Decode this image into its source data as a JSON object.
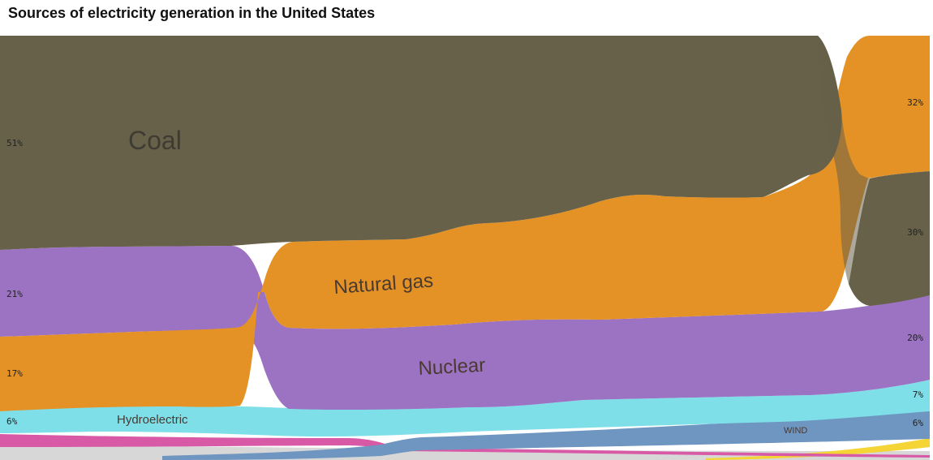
{
  "title": "Sources of electricity generation in the United States",
  "chart_data": {
    "type": "area",
    "title": "Sources of electricity generation in the United States",
    "xlabel": "",
    "ylabel": "",
    "ylim": [
      0,
      100
    ],
    "note": "Bump-style stacked streamgraph; labels are shares of total generation at the start and end of the period",
    "series": [
      {
        "name": "Coal",
        "color": "#676149",
        "start_label": "51%",
        "end_label": "30%",
        "start_value": 51,
        "end_value": 30
      },
      {
        "name": "Natural gas",
        "color": "#e49225",
        "start_label": "17%",
        "end_label": "32%",
        "start_value": 17,
        "end_value": 32
      },
      {
        "name": "Nuclear",
        "color": "#9c72c3",
        "start_label": "21%",
        "end_label": "20%",
        "start_value": 21,
        "end_value": 20
      },
      {
        "name": "Hydroelectric",
        "color": "#7fdfe8",
        "start_label": "6%",
        "end_label": "7%",
        "start_value": 6,
        "end_value": 7
      },
      {
        "name": "WIND",
        "color": "#6e96c0",
        "start_label": "",
        "end_label": "6%",
        "start_value": 0.2,
        "end_value": 6
      },
      {
        "name": "",
        "color": "#d85aa6",
        "start_label": "",
        "end_label": "",
        "start_value": 2.5,
        "end_value": 0.5
      },
      {
        "name": "",
        "color": "#f5d535",
        "start_label": "",
        "end_label": "",
        "start_value": 0,
        "end_value": 1.5
      },
      {
        "name": "",
        "color": "#d7d7d7",
        "start_label": "",
        "end_label": "",
        "start_value": 1.5,
        "end_value": 1.5
      }
    ]
  }
}
